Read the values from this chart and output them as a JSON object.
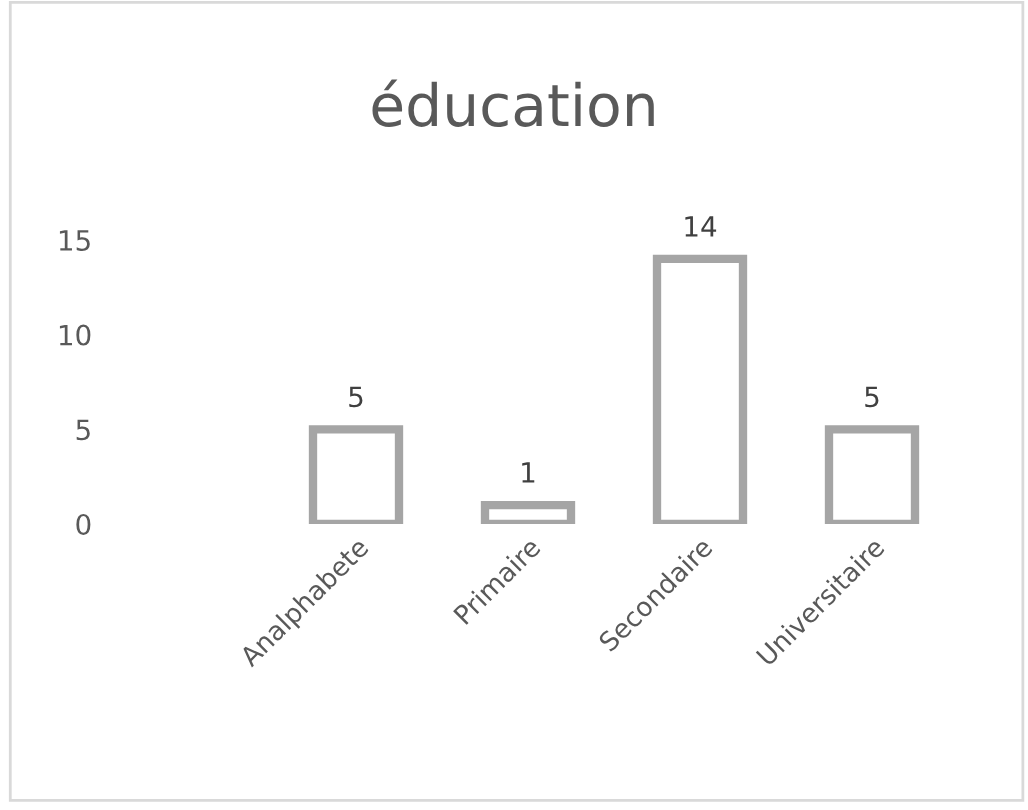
{
  "chart_data": {
    "type": "bar",
    "title": "éducation",
    "categories": [
      "Analphabete",
      "Primaire",
      "Secondaire",
      "Universitaire"
    ],
    "values": [
      5,
      1,
      14,
      5
    ],
    "color": "#a5a5a5",
    "ylim": [
      0,
      15
    ],
    "yticks": [
      0,
      5,
      10,
      15
    ],
    "data_labels": true,
    "grid": false,
    "legend": false
  }
}
